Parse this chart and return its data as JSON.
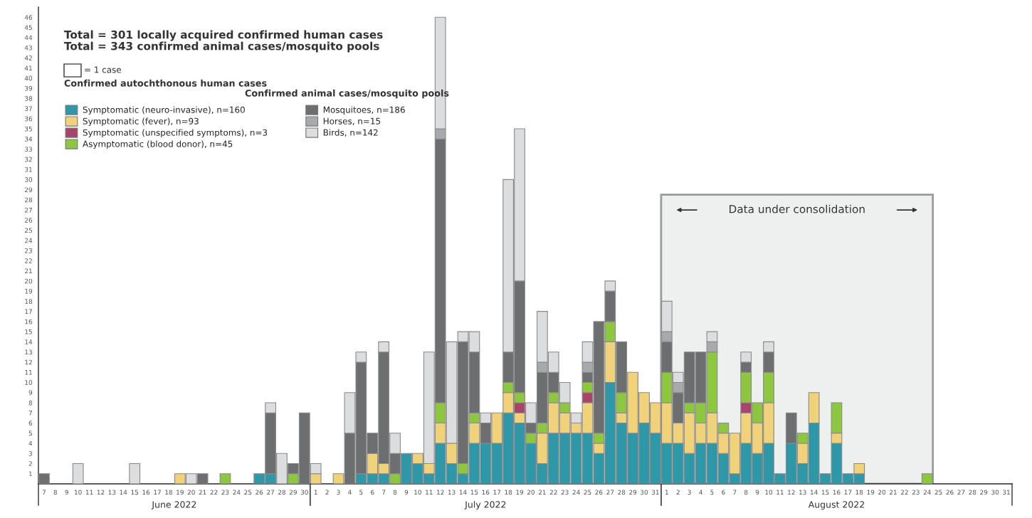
{
  "chart_data": {
    "type": "bar",
    "stacked": true,
    "title": "Total = 301 locally acquired confirmed human cases",
    "subtitle": "Total = 343 confirmed animal cases/mosquito pools",
    "x": [
      "2022-06-07",
      "2022-06-08",
      "2022-06-09",
      "2022-06-10",
      "2022-06-11",
      "2022-06-12",
      "2022-06-13",
      "2022-06-14",
      "2022-06-15",
      "2022-06-16",
      "2022-06-17",
      "2022-06-18",
      "2022-06-19",
      "2022-06-20",
      "2022-06-21",
      "2022-06-22",
      "2022-06-23",
      "2022-06-24",
      "2022-06-25",
      "2022-06-26",
      "2022-06-27",
      "2022-06-28",
      "2022-06-29",
      "2022-06-30",
      "2022-07-01",
      "2022-07-02",
      "2022-07-03",
      "2022-07-04",
      "2022-07-05",
      "2022-07-06",
      "2022-07-07",
      "2022-07-08",
      "2022-07-09",
      "2022-07-10",
      "2022-07-11",
      "2022-07-12",
      "2022-07-13",
      "2022-07-14",
      "2022-07-15",
      "2022-07-16",
      "2022-07-17",
      "2022-07-18",
      "2022-07-19",
      "2022-07-20",
      "2022-07-21",
      "2022-07-22",
      "2022-07-23",
      "2022-07-24",
      "2022-07-25",
      "2022-07-26",
      "2022-07-27",
      "2022-07-28",
      "2022-07-29",
      "2022-07-30",
      "2022-07-31",
      "2022-08-01",
      "2022-08-02",
      "2022-08-03",
      "2022-08-04",
      "2022-08-05",
      "2022-08-06",
      "2022-08-07",
      "2022-08-08",
      "2022-08-09",
      "2022-08-10",
      "2022-08-11",
      "2022-08-12",
      "2022-08-13",
      "2022-08-14",
      "2022-08-15",
      "2022-08-16",
      "2022-08-17",
      "2022-08-18",
      "2022-08-19",
      "2022-08-20",
      "2022-08-21",
      "2022-08-22",
      "2022-08-23",
      "2022-08-24",
      "2022-08-25",
      "2022-08-26",
      "2022-08-27",
      "2022-08-28",
      "2022-08-29",
      "2022-08-30",
      "2022-08-31"
    ],
    "xlim": [
      "2022-06-06T12:00",
      "2022-08-31T12:00"
    ],
    "xticks": [
      {
        "value": "2022-06-07",
        "label": "7"
      },
      {
        "value": "2022-06-08",
        "label": "8"
      },
      {
        "value": "2022-06-09",
        "label": "9"
      },
      {
        "value": "2022-06-10",
        "label": "10"
      },
      {
        "value": "2022-06-11",
        "label": "11"
      },
      {
        "value": "2022-06-12",
        "label": "12"
      },
      {
        "value": "2022-06-13",
        "label": "13"
      },
      {
        "value": "2022-06-14",
        "label": "14"
      },
      {
        "value": "2022-06-15",
        "label": "15"
      },
      {
        "value": "2022-06-16",
        "label": "16"
      },
      {
        "value": "2022-06-17",
        "label": "17"
      },
      {
        "value": "2022-06-18",
        "label": "18"
      },
      {
        "value": "2022-06-19",
        "label": "19"
      },
      {
        "value": "2022-06-20",
        "label": "20"
      },
      {
        "value": "2022-06-21",
        "label": "21"
      },
      {
        "value": "2022-06-22",
        "label": "22"
      },
      {
        "value": "2022-06-23",
        "label": "23"
      },
      {
        "value": "2022-06-24",
        "label": "24"
      },
      {
        "value": "2022-06-25",
        "label": "25"
      },
      {
        "value": "2022-06-26",
        "label": "26"
      },
      {
        "value": "2022-06-27",
        "label": "27"
      },
      {
        "value": "2022-06-28",
        "label": "28"
      },
      {
        "value": "2022-06-29",
        "label": "29"
      },
      {
        "value": "2022-06-30",
        "label": "30"
      },
      {
        "value": "2022-07-01",
        "label": "1"
      },
      {
        "value": "2022-07-02",
        "label": "2"
      },
      {
        "value": "2022-07-03",
        "label": "3"
      },
      {
        "value": "2022-07-04",
        "label": "4"
      },
      {
        "value": "2022-07-05",
        "label": "5"
      },
      {
        "value": "2022-07-06",
        "label": "6"
      },
      {
        "value": "2022-07-07",
        "label": "7"
      },
      {
        "value": "2022-07-08",
        "label": "8"
      },
      {
        "value": "2022-07-09",
        "label": "9"
      },
      {
        "value": "2022-07-10",
        "label": "10"
      },
      {
        "value": "2022-07-11",
        "label": "11"
      },
      {
        "value": "2022-07-12",
        "label": "12"
      },
      {
        "value": "2022-07-13",
        "label": "13"
      },
      {
        "value": "2022-07-14",
        "label": "14"
      },
      {
        "value": "2022-07-15",
        "label": "15"
      },
      {
        "value": "2022-07-16",
        "label": "16"
      },
      {
        "value": "2022-07-17",
        "label": "17"
      },
      {
        "value": "2022-07-18",
        "label": "18"
      },
      {
        "value": "2022-07-19",
        "label": "19"
      },
      {
        "value": "2022-07-20",
        "label": "20"
      },
      {
        "value": "2022-07-21",
        "label": "21"
      },
      {
        "value": "2022-07-22",
        "label": "22"
      },
      {
        "value": "2022-07-23",
        "label": "23"
      },
      {
        "value": "2022-07-24",
        "label": "24"
      },
      {
        "value": "2022-07-25",
        "label": "25"
      },
      {
        "value": "2022-07-26",
        "label": "26"
      },
      {
        "value": "2022-07-27",
        "label": "27"
      },
      {
        "value": "2022-07-28",
        "label": "28"
      },
      {
        "value": "2022-07-29",
        "label": "29"
      },
      {
        "value": "2022-07-30",
        "label": "30"
      },
      {
        "value": "2022-07-31",
        "label": "31"
      },
      {
        "value": "2022-08-01",
        "label": "1"
      },
      {
        "value": "2022-08-02",
        "label": "2"
      },
      {
        "value": "2022-08-03",
        "label": "3"
      },
      {
        "value": "2022-08-04",
        "label": "4"
      },
      {
        "value": "2022-08-05",
        "label": "5"
      },
      {
        "value": "2022-08-06",
        "label": "6"
      },
      {
        "value": "2022-08-07",
        "label": "7"
      },
      {
        "value": "2022-08-08",
        "label": "8"
      },
      {
        "value": "2022-08-09",
        "label": "9"
      },
      {
        "value": "2022-08-10",
        "label": "10"
      },
      {
        "value": "2022-08-11",
        "label": "11"
      },
      {
        "value": "2022-08-12",
        "label": "12"
      },
      {
        "value": "2022-08-13",
        "label": "13"
      },
      {
        "value": "2022-08-14",
        "label": "14"
      },
      {
        "value": "2022-08-15",
        "label": "15"
      },
      {
        "value": "2022-08-16",
        "label": "16"
      },
      {
        "value": "2022-08-17",
        "label": "17"
      },
      {
        "value": "2022-08-18",
        "label": "18"
      },
      {
        "value": "2022-08-19",
        "label": "19"
      },
      {
        "value": "2022-08-20",
        "label": "20"
      },
      {
        "value": "2022-08-21",
        "label": "21"
      },
      {
        "value": "2022-08-22",
        "label": "22"
      },
      {
        "value": "2022-08-23",
        "label": "23"
      },
      {
        "value": "2022-08-24",
        "label": "24"
      },
      {
        "value": "2022-08-25",
        "label": "25"
      },
      {
        "value": "2022-08-26",
        "label": "26"
      },
      {
        "value": "2022-08-27",
        "label": "27"
      },
      {
        "value": "2022-08-28",
        "label": "28"
      },
      {
        "value": "2022-08-29",
        "label": "29"
      },
      {
        "value": "2022-08-30",
        "label": "30"
      },
      {
        "value": "2022-08-31",
        "label": "31"
      }
    ],
    "series": [
      {
        "name": "Symptomatic (neuro-invasive), n=160",
        "color": "#2e97a8",
        "values": [
          0,
          0,
          0,
          0,
          0,
          0,
          0,
          0,
          0,
          0,
          0,
          0,
          0,
          0,
          0,
          0,
          0,
          0,
          0,
          1,
          1,
          0,
          0,
          0,
          0,
          0,
          0,
          0,
          1,
          1,
          1,
          0,
          3,
          2,
          1,
          4,
          2,
          1,
          4,
          4,
          4,
          7,
          6,
          4,
          2,
          5,
          5,
          5,
          5,
          3,
          10,
          6,
          5,
          6,
          5,
          4,
          4,
          3,
          4,
          4,
          3,
          1,
          4,
          3,
          4,
          1,
          4,
          2,
          6,
          1,
          4,
          1,
          1,
          0,
          0,
          0,
          0,
          0,
          0,
          0,
          0,
          0,
          0,
          0,
          0,
          0
        ]
      },
      {
        "name": "Symptomatic (fever), n=93",
        "color": "#f0d27a",
        "values": [
          0,
          0,
          0,
          0,
          0,
          0,
          0,
          0,
          0,
          0,
          0,
          0,
          1,
          0,
          0,
          0,
          0,
          0,
          0,
          0,
          0,
          0,
          0,
          0,
          1,
          0,
          1,
          0,
          0,
          2,
          1,
          0,
          0,
          1,
          1,
          2,
          2,
          0,
          2,
          0,
          3,
          2,
          1,
          0,
          3,
          3,
          2,
          1,
          3,
          1,
          4,
          1,
          6,
          3,
          3,
          4,
          2,
          4,
          2,
          3,
          2,
          4,
          3,
          3,
          4,
          0,
          0,
          2,
          3,
          0,
          1,
          0,
          1,
          0,
          0,
          0,
          0,
          0,
          0,
          0,
          0,
          0,
          0,
          0,
          0,
          0
        ]
      },
      {
        "name": "Symptomatic (unspecified symptoms), n=3",
        "color": "#a8446a",
        "values": [
          0,
          0,
          0,
          0,
          0,
          0,
          0,
          0,
          0,
          0,
          0,
          0,
          0,
          0,
          0,
          0,
          0,
          0,
          0,
          0,
          0,
          0,
          0,
          0,
          0,
          0,
          0,
          0,
          0,
          0,
          0,
          0,
          0,
          0,
          0,
          0,
          0,
          0,
          0,
          0,
          0,
          0,
          1,
          0,
          0,
          0,
          0,
          0,
          1,
          0,
          0,
          0,
          0,
          0,
          0,
          0,
          0,
          0,
          0,
          0,
          0,
          0,
          1,
          0,
          0,
          0,
          0,
          0,
          0,
          0,
          0,
          0,
          0,
          0,
          0,
          0,
          0,
          0,
          0,
          0,
          0,
          0,
          0,
          0,
          0,
          0
        ]
      },
      {
        "name": "Asymptomatic (blood donor), n=45",
        "color": "#8dc63f",
        "values": [
          0,
          0,
          0,
          0,
          0,
          0,
          0,
          0,
          0,
          0,
          0,
          0,
          0,
          0,
          0,
          0,
          1,
          0,
          0,
          0,
          0,
          0,
          1,
          0,
          0,
          0,
          0,
          0,
          0,
          0,
          0,
          1,
          0,
          0,
          0,
          2,
          0,
          1,
          1,
          0,
          0,
          1,
          1,
          1,
          1,
          1,
          1,
          0,
          1,
          1,
          2,
          2,
          0,
          0,
          0,
          3,
          0,
          1,
          2,
          6,
          1,
          0,
          3,
          2,
          3,
          0,
          0,
          1,
          0,
          0,
          3,
          0,
          0,
          0,
          0,
          0,
          0,
          0,
          1,
          0,
          0,
          0,
          0,
          0,
          0,
          0
        ]
      },
      {
        "name": "Mosquitoes, n=186",
        "color": "#6d6e70",
        "values": [
          1,
          0,
          0,
          0,
          0,
          0,
          0,
          0,
          0,
          0,
          0,
          0,
          0,
          0,
          1,
          0,
          0,
          0,
          0,
          0,
          6,
          0,
          1,
          7,
          0,
          0,
          0,
          5,
          11,
          2,
          11,
          2,
          0,
          0,
          0,
          26,
          0,
          12,
          6,
          2,
          0,
          3,
          11,
          1,
          5,
          2,
          0,
          0,
          1,
          11,
          3,
          5,
          0,
          0,
          0,
          3,
          3,
          5,
          5,
          0,
          0,
          0,
          1,
          0,
          2,
          0,
          3,
          0,
          0,
          0,
          0,
          0,
          0,
          0,
          0,
          0,
          0,
          0,
          0,
          0,
          0,
          0,
          0,
          0,
          0,
          0
        ]
      },
      {
        "name": "Horses, n=15",
        "color": "#a7a9ac",
        "values": [
          0,
          0,
          0,
          0,
          0,
          0,
          0,
          0,
          0,
          0,
          0,
          0,
          0,
          0,
          0,
          0,
          0,
          0,
          0,
          0,
          0,
          0,
          0,
          0,
          0,
          0,
          0,
          0,
          0,
          0,
          0,
          0,
          0,
          0,
          0,
          1,
          0,
          0,
          0,
          0,
          0,
          0,
          0,
          0,
          1,
          0,
          0,
          0,
          1,
          0,
          0,
          0,
          0,
          0,
          0,
          1,
          1,
          0,
          0,
          1,
          0,
          0,
          0,
          0,
          0,
          0,
          0,
          0,
          0,
          0,
          0,
          0,
          0,
          0,
          0,
          0,
          0,
          0,
          0,
          0,
          0,
          0,
          0,
          0,
          0,
          0
        ]
      },
      {
        "name": "Birds, n=142",
        "color": "#dcdddf",
        "values": [
          0,
          0,
          0,
          2,
          0,
          0,
          0,
          0,
          2,
          0,
          0,
          0,
          0,
          1,
          0,
          0,
          0,
          0,
          0,
          0,
          1,
          3,
          0,
          0,
          1,
          0,
          0,
          4,
          1,
          0,
          1,
          2,
          0,
          0,
          11,
          11,
          10,
          1,
          2,
          1,
          0,
          17,
          15,
          2,
          5,
          2,
          2,
          1,
          2,
          0,
          1,
          0,
          0,
          0,
          0,
          3,
          1,
          0,
          0,
          1,
          0,
          0,
          1,
          0,
          1,
          0,
          0,
          0,
          0,
          0,
          0,
          0,
          0,
          0,
          0,
          0,
          0,
          0,
          0,
          0,
          0,
          0,
          0,
          0,
          0,
          0
        ]
      }
    ],
    "ylim": [
      0,
      47
    ],
    "yticks": [
      1,
      2,
      3,
      4,
      5,
      6,
      7,
      8,
      9,
      10,
      11,
      12,
      13,
      14,
      15,
      16,
      17,
      18,
      19,
      20,
      21,
      22,
      23,
      24,
      25,
      26,
      27,
      28,
      29,
      30,
      31,
      32,
      33,
      34,
      35,
      36,
      37,
      38,
      39,
      40,
      41,
      42,
      43,
      44,
      45,
      46
    ],
    "bands": [
      {
        "axis": "x",
        "from": "2022-07-31T12:00",
        "to": "2022-08-24T12:00",
        "label": "Data under consolidation",
        "color": "#eef0f0"
      }
    ],
    "legend": "top left",
    "grid": false,
    "annotations": [
      "Confirmed autochthonous human cases",
      "Confirmed animal cases/mosquito pools",
      "= 1 case",
      "June 2022",
      "July 2022",
      "August 2022"
    ]
  }
}
